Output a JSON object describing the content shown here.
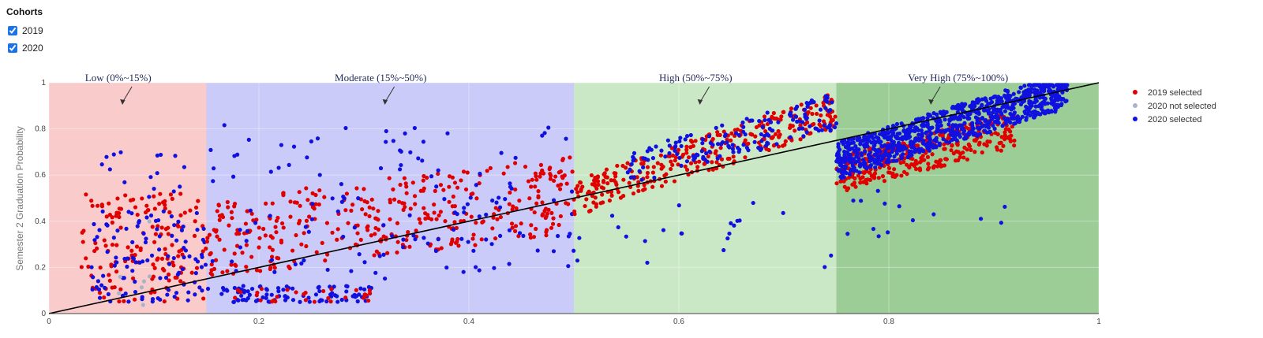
{
  "controls": {
    "title": "Cohorts",
    "options": [
      {
        "label": "2019",
        "checked": true
      },
      {
        "label": "2020",
        "checked": true
      }
    ]
  },
  "chart_data": {
    "type": "scatter",
    "ylabel": "Semester 2 Graduation Probability",
    "xlabel": "",
    "xlim": [
      0,
      1
    ],
    "ylim": [
      0,
      1
    ],
    "x_ticks": [
      "0",
      "0.2",
      "0.4",
      "0.6",
      "0.8",
      "1"
    ],
    "y_ticks": [
      "0",
      "0.2",
      "0.4",
      "0.6",
      "0.8",
      "1"
    ],
    "grid": true,
    "legend_position": "right",
    "reference_line": {
      "from": [
        0,
        0
      ],
      "to": [
        1,
        1
      ],
      "color": "#000000"
    },
    "bands": [
      {
        "label": "Low (0%~15%)",
        "x0": 0,
        "x1": 0.15,
        "color": "#f7a8a8",
        "arrow_x": 0.07
      },
      {
        "label": "Moderate (15%~50%)",
        "x0": 0.15,
        "x1": 0.5,
        "color": "#a8a8f7",
        "arrow_x": 0.32
      },
      {
        "label": "High (50%~75%)",
        "x0": 0.5,
        "x1": 0.75,
        "color": "#a8d8a0",
        "arrow_x": 0.62
      },
      {
        "label": "Very High (75%~100%)",
        "x0": 0.75,
        "x1": 1.0,
        "color": "#5aab52",
        "arrow_x": 0.84
      }
    ],
    "series": [
      {
        "name": "2019 selected",
        "color": "#e00000"
      },
      {
        "name": "2020 not selected",
        "color": "#a9b4c8"
      },
      {
        "name": "2020 selected",
        "color": "#1010e0"
      }
    ],
    "clusters": [
      {
        "series": 0,
        "x": [
          0.03,
          0.15
        ],
        "y": [
          0.05,
          0.52
        ],
        "n": 150,
        "mode": "range"
      },
      {
        "series": 2,
        "x": [
          0.04,
          0.15
        ],
        "y": [
          0.05,
          0.45
        ],
        "n": 110,
        "mode": "range"
      },
      {
        "series": 2,
        "x": [
          0.04,
          0.14
        ],
        "y": [
          0.5,
          0.72
        ],
        "n": 16,
        "mode": "range"
      },
      {
        "series": 1,
        "x": [
          0.06,
          0.1
        ],
        "y": [
          0.03,
          0.4
        ],
        "n": 7,
        "mode": "range"
      },
      {
        "series": 0,
        "x": [
          0.15,
          0.5
        ],
        "y": [
          0.18,
          0.38
        ],
        "n": 380,
        "mode": "trend"
      },
      {
        "series": 2,
        "x": [
          0.15,
          0.5
        ],
        "y": [
          0.1,
          0.5
        ],
        "n": 90,
        "mode": "scatter"
      },
      {
        "series": 2,
        "x": [
          0.16,
          0.31
        ],
        "y": [
          0.05,
          0.12
        ],
        "n": 90,
        "mode": "range"
      },
      {
        "series": 0,
        "x": [
          0.16,
          0.31
        ],
        "y": [
          0.05,
          0.11
        ],
        "n": 30,
        "mode": "range"
      },
      {
        "series": 2,
        "x": [
          0.15,
          0.5
        ],
        "y": [
          0.55,
          0.82
        ],
        "n": 45,
        "mode": "range"
      },
      {
        "series": 0,
        "x": [
          0.5,
          0.75
        ],
        "y": [
          0.5,
          0.88
        ],
        "n": 320,
        "mode": "band"
      },
      {
        "series": 2,
        "x": [
          0.55,
          0.75
        ],
        "y": [
          0.62,
          0.88
        ],
        "n": 160,
        "mode": "band"
      },
      {
        "series": 2,
        "x": [
          0.5,
          0.75
        ],
        "y": [
          0.2,
          0.5
        ],
        "n": 22,
        "mode": "range"
      },
      {
        "series": 0,
        "x": [
          0.75,
          0.92
        ],
        "y": [
          0.6,
          0.8
        ],
        "n": 320,
        "mode": "band"
      },
      {
        "series": 2,
        "x": [
          0.75,
          0.97
        ],
        "y": [
          0.66,
          0.97
        ],
        "n": 900,
        "mode": "band"
      },
      {
        "series": 2,
        "x": [
          0.76,
          0.92
        ],
        "y": [
          0.33,
          0.55
        ],
        "n": 14,
        "mode": "range"
      }
    ]
  }
}
